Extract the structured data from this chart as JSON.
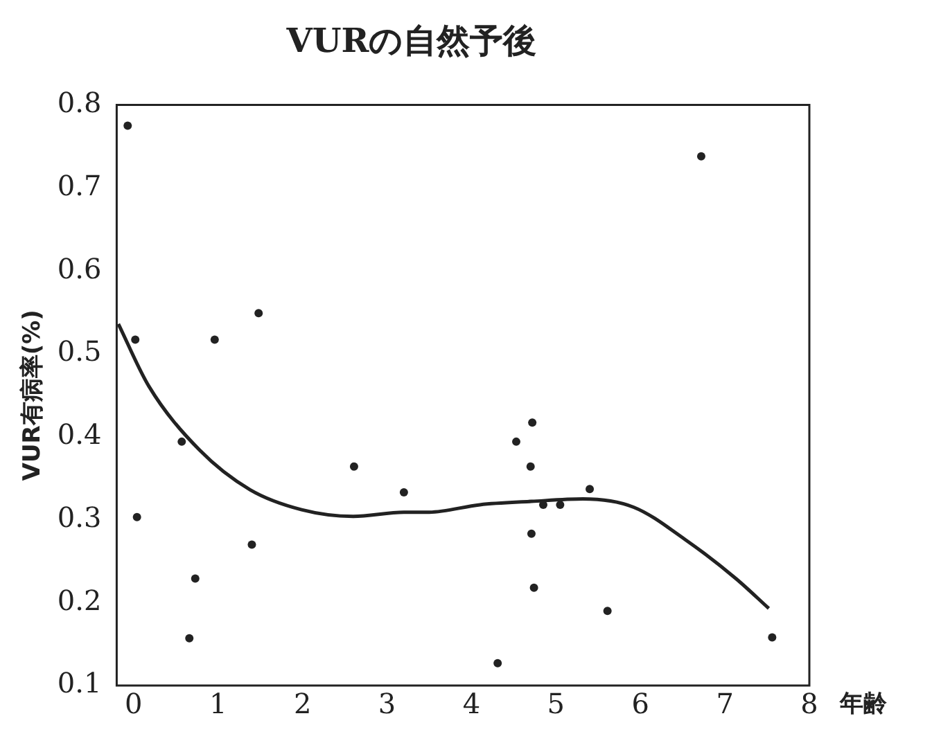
{
  "chart_data": {
    "type": "scatter",
    "title": "VURの自然予後",
    "xlabel": "年齢",
    "ylabel": "VUR有病率(%)",
    "xlim": [
      -0.2,
      8
    ],
    "ylim": [
      0.1,
      0.8
    ],
    "xticks": [
      0,
      1,
      2,
      3,
      4,
      5,
      6,
      7,
      8
    ],
    "yticks": [
      0.1,
      0.2,
      0.3,
      0.4,
      0.5,
      0.6,
      0.7,
      0.8
    ],
    "grid": false,
    "legend": false,
    "marker": "circle",
    "series": [
      {
        "color": "#222222",
        "x": [
          -0.07,
          0.02,
          0.04,
          0.57,
          0.73,
          0.66,
          0.96,
          1.48,
          1.4,
          2.61,
          3.2,
          6.72,
          4.72,
          4.53,
          4.7,
          5.4,
          4.85,
          5.05,
          4.71,
          4.74,
          5.61,
          4.31,
          7.56
        ],
        "values": [
          0.775,
          0.517,
          0.303,
          0.394,
          0.229,
          0.157,
          0.517,
          0.549,
          0.27,
          0.364,
          0.333,
          0.738,
          0.417,
          0.394,
          0.364,
          0.337,
          0.318,
          0.318,
          0.283,
          0.218,
          0.19,
          0.127,
          0.158
        ]
      },
      {
        "type": "line",
        "color": "#222222",
        "marker": "none",
        "x": [
          -0.18,
          0.18,
          0.78,
          1.38,
          1.99,
          2.6,
          3.2,
          3.5,
          4.1,
          4.71,
          5.32,
          5.92,
          6.53,
          7.13,
          7.52
        ],
        "values": [
          0.536,
          0.461,
          0.384,
          0.336,
          0.312,
          0.304,
          0.309,
          0.309,
          0.318,
          0.322,
          0.325,
          0.315,
          0.276,
          0.229,
          0.193
        ]
      }
    ]
  }
}
